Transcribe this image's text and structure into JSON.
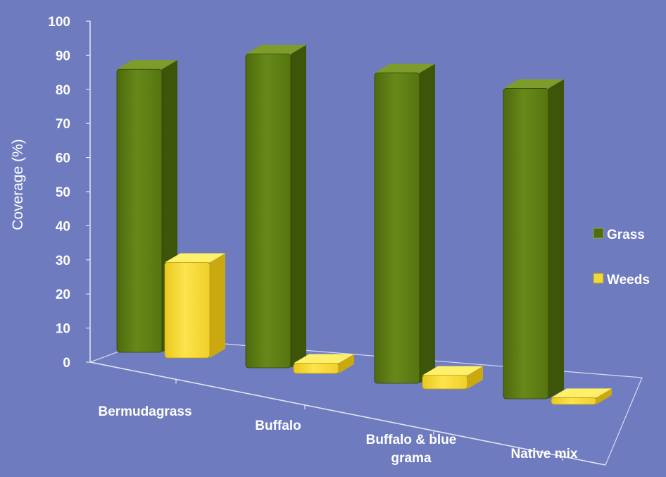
{
  "chart_data": {
    "type": "bar",
    "ylabel": "Coverage (%)",
    "ylim": [
      0,
      100
    ],
    "yticks": [
      0,
      10,
      20,
      30,
      40,
      50,
      60,
      70,
      80,
      90,
      100
    ],
    "categories": [
      "Bermudagrass",
      "Buffalo",
      "Buffalo & blue grama",
      "Native mix"
    ],
    "series": [
      {
        "name": "Grass",
        "values": [
          83,
          92,
          91,
          91
        ],
        "color": "#5a7a12"
      },
      {
        "name": "Weeds",
        "values": [
          28,
          3,
          4,
          2
        ],
        "color": "#f3d83b"
      }
    ],
    "legend_position": "right",
    "background": "#6f7bbf",
    "style": "3d-columns"
  }
}
